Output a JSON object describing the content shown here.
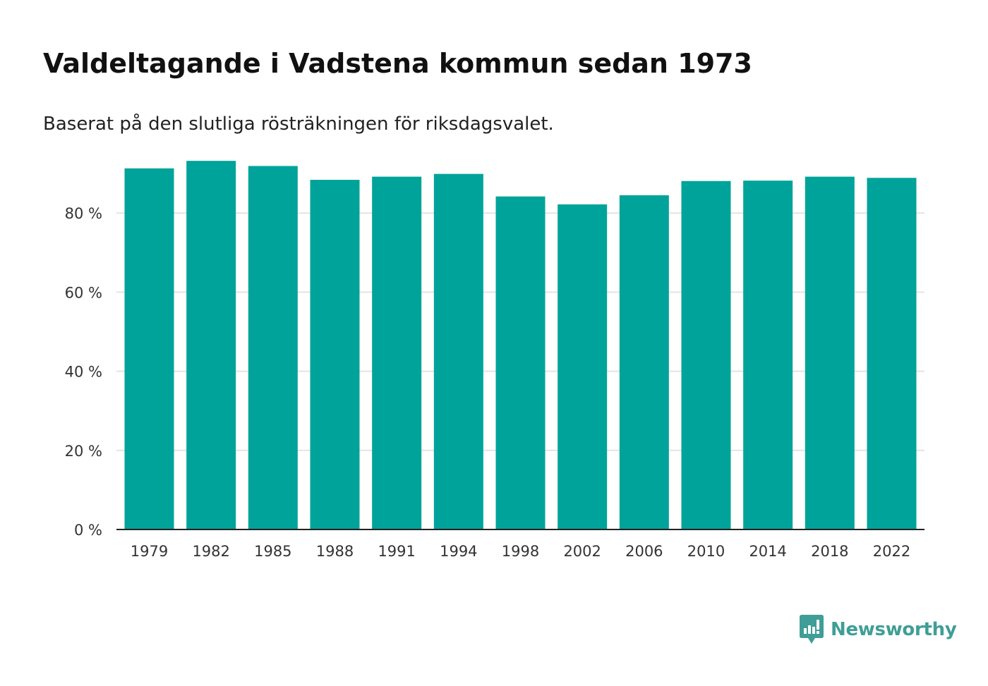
{
  "header": {
    "title": "Valdeltagande i Vadstena kommun sedan 1973",
    "subtitle": "Baserat på den slutliga rösträkningen för riksdagsvalet."
  },
  "brand": {
    "name": "Newsworthy",
    "icon": "newsworthy-logo-icon",
    "color": "#3f9e97"
  },
  "chart_data": {
    "type": "bar",
    "title": "Valdeltagande i Vadstena kommun sedan 1973",
    "subtitle": "Baserat på den slutliga rösträkningen för riksdagsvalet.",
    "xlabel": "",
    "ylabel": "",
    "categories": [
      "1979",
      "1982",
      "1985",
      "1988",
      "1991",
      "1994",
      "1998",
      "2002",
      "2006",
      "2010",
      "2014",
      "2018",
      "2022"
    ],
    "values": [
      91.3,
      93.2,
      91.9,
      88.4,
      89.2,
      89.9,
      84.2,
      82.2,
      84.5,
      88.1,
      88.2,
      89.2,
      88.9
    ],
    "yticks": [
      0,
      20,
      40,
      60,
      80
    ],
    "ytick_labels": [
      "0 %",
      "20 %",
      "40 %",
      "60 %",
      "80 %"
    ],
    "ylim": [
      0,
      100
    ],
    "grid": true,
    "legend": "none",
    "colors": {
      "bar": "#00a39a",
      "grid": "#e3e3e3",
      "axis": "#222222"
    }
  }
}
